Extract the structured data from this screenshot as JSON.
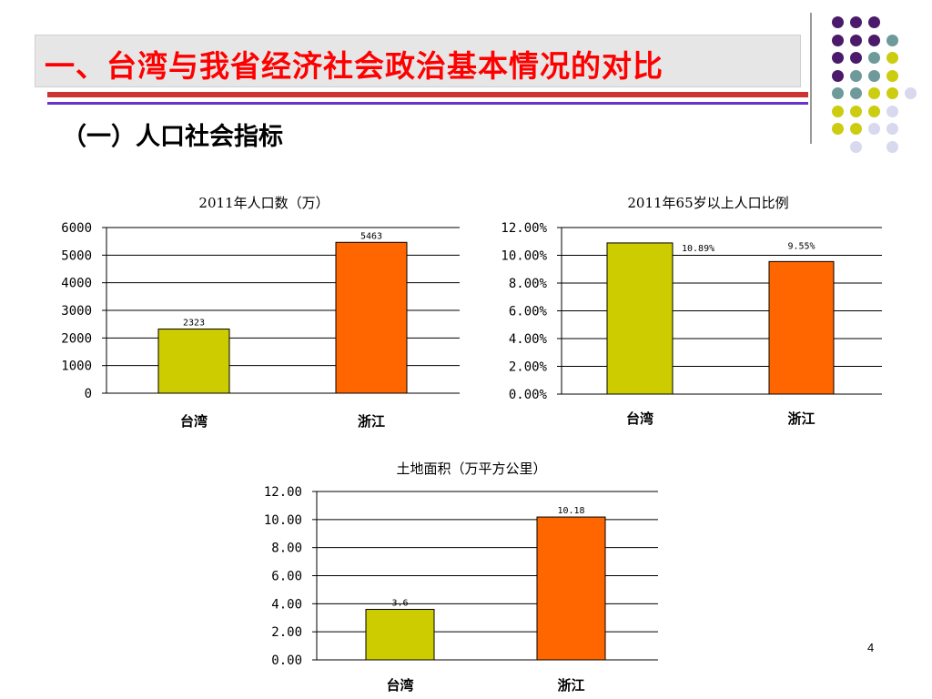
{
  "slide": {
    "title": "一、台湾与我省经济社会政治基本情况的对比",
    "subtitle": "（一）人口社会指标",
    "page_number": "4"
  },
  "colors": {
    "title_text": "#ff0000",
    "taiwan_bar": "#cccc00",
    "zhejiang_bar": "#ff6600",
    "stripe_red": "#cc3333",
    "stripe_purple": "#6633cc"
  },
  "decoration": {
    "dot_palette": [
      "#4b1a6b",
      "#6e9a9a",
      "#cccc11",
      "#d8d8ee"
    ],
    "dot_rows": [
      [
        0,
        0,
        0,
        null
      ],
      [
        0,
        0,
        0,
        1
      ],
      [
        0,
        0,
        1,
        2
      ],
      [
        0,
        1,
        1,
        2
      ],
      [
        1,
        1,
        2,
        2,
        3
      ],
      [
        2,
        2,
        2,
        3
      ],
      [
        2,
        2,
        3,
        3
      ],
      [
        null,
        3,
        null,
        3
      ]
    ]
  },
  "chart_data": [
    {
      "type": "bar",
      "title": "2011年人口数（万）",
      "categories": [
        "台湾",
        "浙江"
      ],
      "values": [
        2323,
        5463
      ],
      "value_labels": [
        "2323",
        "5463"
      ],
      "ylim": [
        0,
        6000
      ],
      "yticks": [
        "0",
        "1000",
        "2000",
        "3000",
        "4000",
        "5000",
        "6000"
      ],
      "grid": true
    },
    {
      "type": "bar",
      "title": "2011年65岁以上人口比例",
      "categories": [
        "台湾",
        "浙江"
      ],
      "values": [
        10.89,
        9.55
      ],
      "value_labels": [
        "10.89%",
        "9.55%"
      ],
      "ylim": [
        0,
        12
      ],
      "yticks": [
        "0.00%",
        "2.00%",
        "4.00%",
        "6.00%",
        "8.00%",
        "10.00%",
        "12.00%"
      ],
      "grid": true
    },
    {
      "type": "bar",
      "title": "土地面积（万平方公里）",
      "categories": [
        "台湾",
        "浙江"
      ],
      "values": [
        3.6,
        10.18
      ],
      "value_labels": [
        "3.6",
        "10.18"
      ],
      "ylim": [
        0,
        12
      ],
      "yticks": [
        "0.00",
        "2.00",
        "4.00",
        "6.00",
        "8.00",
        "10.00",
        "12.00"
      ],
      "grid": true
    }
  ]
}
